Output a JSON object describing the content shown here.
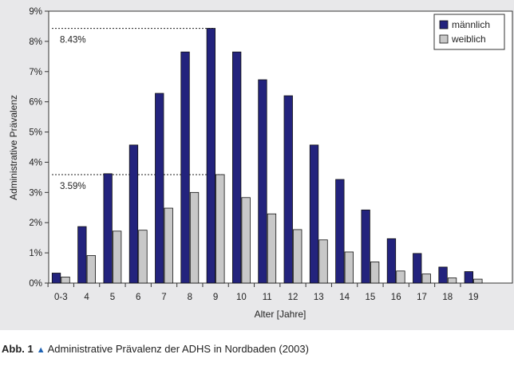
{
  "caption": {
    "label": "Abb. 1",
    "marker": "▲",
    "text": "Administrative Prävalenz der ADHS in Nordbaden (2003)"
  },
  "chart_data": {
    "type": "bar",
    "title": "",
    "xlabel": "Alter [Jahre]",
    "ylabel": "Administrative Prävalenz",
    "ylim": [
      0,
      9
    ],
    "yticks": [
      0,
      1,
      2,
      3,
      4,
      5,
      6,
      7,
      8,
      9
    ],
    "ytick_labels": [
      "0%",
      "1%",
      "2%",
      "3%",
      "4%",
      "5%",
      "6%",
      "7%",
      "8%",
      "9%"
    ],
    "categories": [
      "0-3",
      "4",
      "5",
      "6",
      "7",
      "8",
      "9",
      "10",
      "11",
      "12",
      "13",
      "14",
      "15",
      "16",
      "17",
      "18",
      "19"
    ],
    "series": [
      {
        "name": "männlich",
        "color": "#23237d",
        "values": [
          0.33,
          1.87,
          3.62,
          4.57,
          6.28,
          7.65,
          8.43,
          7.65,
          6.73,
          6.2,
          4.57,
          3.43,
          2.42,
          1.47,
          0.98,
          0.53,
          0.38
        ]
      },
      {
        "name": "weiblich",
        "color": "#c8c8c8",
        "values": [
          0.2,
          0.91,
          1.72,
          1.75,
          2.48,
          3.0,
          3.59,
          2.83,
          2.29,
          1.77,
          1.43,
          1.03,
          0.7,
          0.4,
          0.3,
          0.17,
          0.13
        ]
      }
    ],
    "annotations": [
      {
        "text": "8.43%",
        "value": 8.43
      },
      {
        "text": "3.59%",
        "value": 3.59
      }
    ],
    "legend": "top-right",
    "grid": false
  }
}
